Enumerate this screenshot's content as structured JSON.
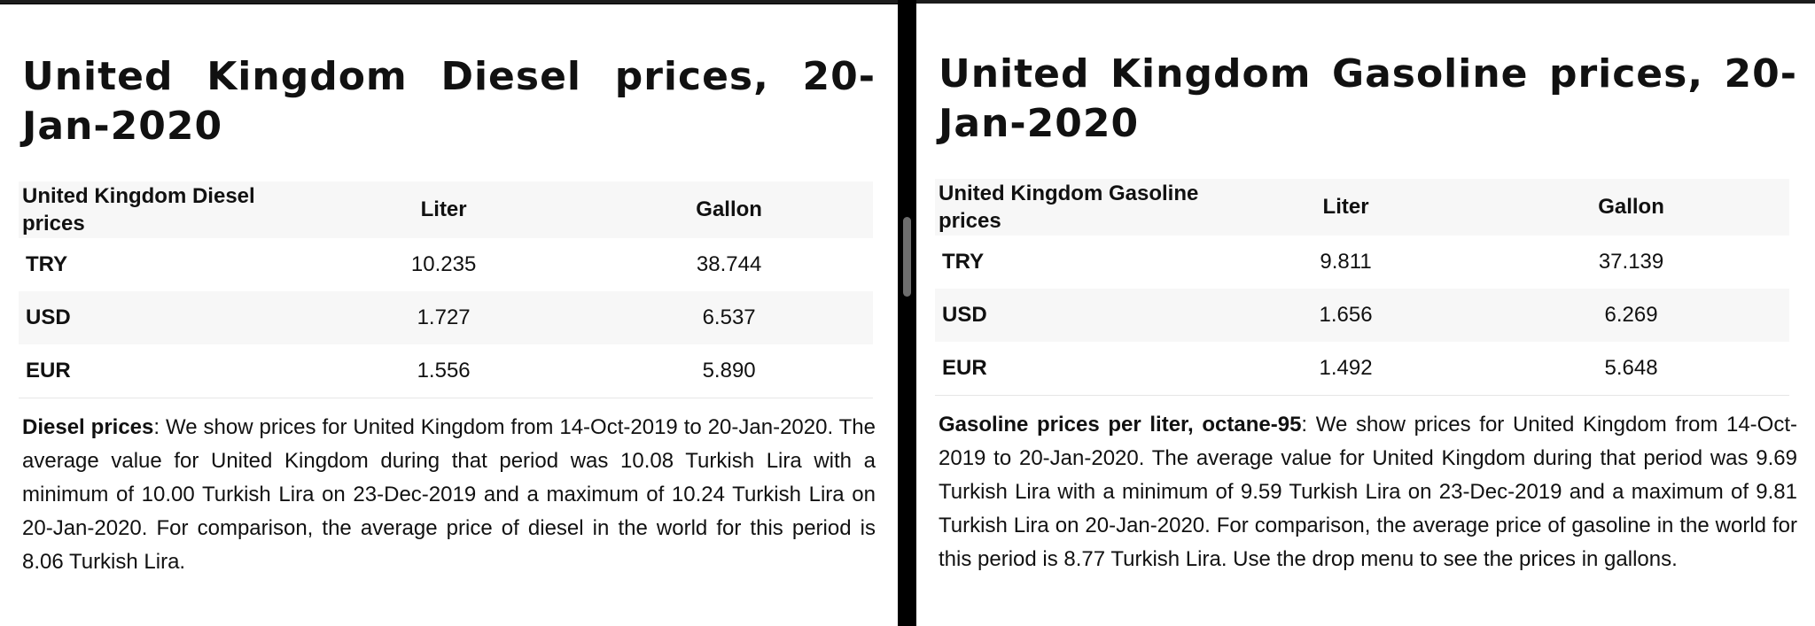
{
  "left": {
    "title": "United Kingdom Diesel prices, 20-Jan-2020",
    "table": {
      "header": [
        "United Kingdom Diesel prices",
        "Liter",
        "Gallon"
      ],
      "rows": [
        {
          "label": "TRY",
          "liter": "10.235",
          "gallon": "38.744"
        },
        {
          "label": "USD",
          "liter": "1.727",
          "gallon": "6.537"
        },
        {
          "label": "EUR",
          "liter": "1.556",
          "gallon": "5.890"
        }
      ]
    },
    "note_bold": "Diesel prices",
    "note_text": ": We show prices for United Kingdom from 14-Oct-2019 to 20-Jan-2020. The average value for United Kingdom during that period was 10.08 Turkish Lira with a minimum of 10.00 Turkish Lira on 23-Dec-2019 and a maximum of 10.24 Turkish Lira on 20-Jan-2020. For comparison, the average price of diesel in the world for this period is 8.06 Turkish Lira."
  },
  "right": {
    "title": "United Kingdom Gasoline prices, 20-Jan-2020",
    "table": {
      "header": [
        "United Kingdom Gasoline prices",
        "Liter",
        "Gallon"
      ],
      "rows": [
        {
          "label": "TRY",
          "liter": "9.811",
          "gallon": "37.139"
        },
        {
          "label": "USD",
          "liter": "1.656",
          "gallon": "6.269"
        },
        {
          "label": "EUR",
          "liter": "1.492",
          "gallon": "5.648"
        }
      ]
    },
    "note_bold": "Gasoline prices per liter, octane-95",
    "note_text": ": We show prices for United Kingdom from 14-Oct-2019 to 20-Jan-2020. The average value for United Kingdom during that period was 9.69 Turkish Lira with a minimum of 9.59 Turkish Lira on 23-Dec-2019 and a maximum of 9.81 Turkish Lira on 20-Jan-2020. For comparison, the average price of gasoline in the world for this period is 8.77 Turkish Lira. Use the drop menu to see the prices in gallons."
  }
}
